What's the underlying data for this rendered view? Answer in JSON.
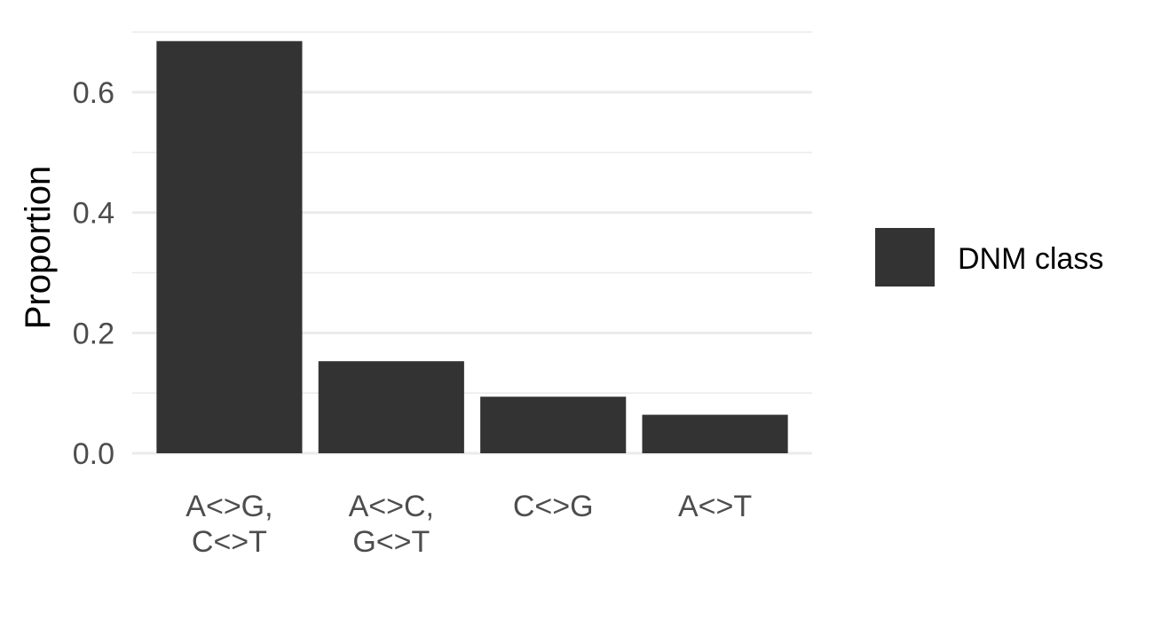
{
  "chart_data": {
    "type": "bar",
    "categories": [
      [
        "A<>G,",
        "C<>T"
      ],
      [
        "A<>C,",
        "G<>T"
      ],
      [
        "C<>G"
      ],
      [
        "A<>T"
      ]
    ],
    "series": [
      {
        "name": "DNM class",
        "values": [
          0.685,
          0.153,
          0.094,
          0.064
        ]
      }
    ],
    "title": "",
    "xlabel": "",
    "ylabel": "Proportion",
    "ylim": [
      0,
      0.72
    ],
    "yticks": [
      "0.0",
      "0.2",
      "0.4",
      "0.6"
    ],
    "ytick_values": [
      0,
      0.2,
      0.4,
      0.6
    ],
    "grid": true,
    "legend": {
      "position": "right",
      "entries": [
        "DNM class"
      ]
    },
    "colors": {
      "bar": "#333333",
      "grid": "#ebebeb",
      "tick_text": "#4d4d4d"
    }
  }
}
